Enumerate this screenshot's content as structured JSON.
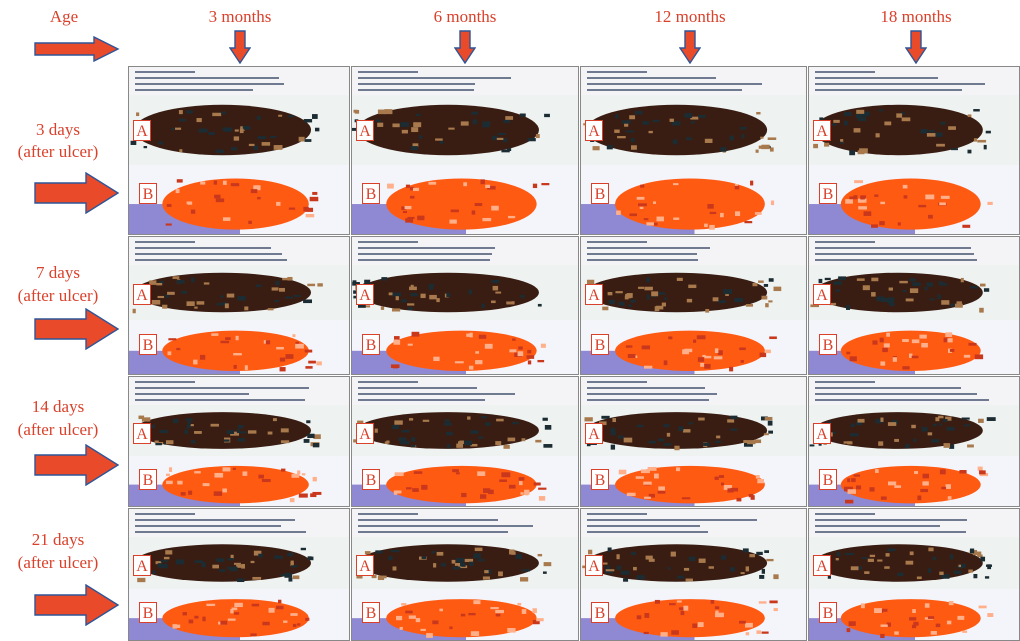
{
  "header": {
    "age_label": "Age",
    "columns": [
      "3 months",
      "6 months",
      "12 months",
      "18 months"
    ]
  },
  "rows": [
    {
      "title": "3 days",
      "subtitle": "(after ulcer)"
    },
    {
      "title": "7 days",
      "subtitle": "(after ulcer)"
    },
    {
      "title": "14 days",
      "subtitle": "(after ulcer)"
    },
    {
      "title": "21 days",
      "subtitle": "(after ulcer)"
    }
  ],
  "panel_labels": {
    "top": "A",
    "bottom": "B"
  },
  "colors": {
    "label_red": "#d9412b",
    "arrow_fill": "#e84a2a",
    "arrow_stroke": "#2f5597",
    "heat_orange": "#ff5a12",
    "heat_blue": "#3c2fb0",
    "tissue_dark": "#3a1d12"
  }
}
